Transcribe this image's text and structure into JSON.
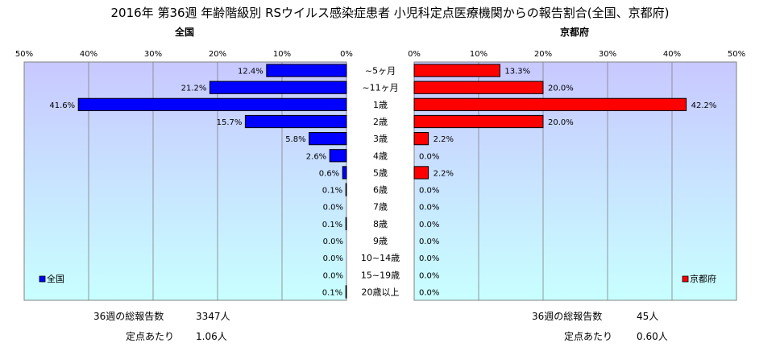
{
  "title": "2016年 第36週 年齢階級別 RSウイルス感染症患者 小児科定点医療機関からの報告割合(全国、京都府)",
  "chart_data": {
    "type": "bar",
    "orientation": "horizontal",
    "categories": [
      "~5ヶ月",
      "~11ヶ月",
      "1歳",
      "2歳",
      "3歳",
      "4歳",
      "5歳",
      "6歳",
      "7歳",
      "8歳",
      "9歳",
      "10~14歳",
      "15~19歳",
      "20歳以上"
    ],
    "series": [
      {
        "name": "全国",
        "panel": "left",
        "color": "#0000ff",
        "values": [
          12.4,
          21.2,
          41.6,
          15.7,
          5.8,
          2.6,
          0.6,
          0.1,
          0.0,
          0.1,
          0.0,
          0.0,
          0.0,
          0.1
        ],
        "labels": [
          "12.4%",
          "21.2%",
          "41.6%",
          "15.7%",
          "5.8%",
          "2.6%",
          "0.6%",
          "0.1%",
          "0.0%",
          "0.1%",
          "0.0%",
          "0.0%",
          "0.0%",
          "0.1%"
        ]
      },
      {
        "name": "京都府",
        "panel": "right",
        "color": "#ff0000",
        "values": [
          13.3,
          20.0,
          42.2,
          20.0,
          2.2,
          0.0,
          2.2,
          0.0,
          0.0,
          0.0,
          0.0,
          0.0,
          0.0,
          0.0
        ],
        "labels": [
          "13.3%",
          "20.0%",
          "42.2%",
          "20.0%",
          "2.2%",
          "0.0%",
          "2.2%",
          "0.0%",
          "0.0%",
          "0.0%",
          "0.0%",
          "0.0%",
          "0.0%",
          "0.0%"
        ]
      }
    ],
    "xlim": [
      0,
      50
    ],
    "ticks": [
      "0%",
      "10%",
      "20%",
      "30%",
      "40%",
      "50%"
    ],
    "ticks_reversed_left": [
      "50%",
      "40%",
      "30%",
      "20%",
      "10%",
      "0%"
    ],
    "panel_titles": {
      "left": "全国",
      "right": "京都府"
    },
    "legend": {
      "left": "全国",
      "right": "京都府",
      "placement": "bottom"
    },
    "plot_bg_top": "#c8c8ff",
    "plot_bg_bottom": "#c8ffff",
    "grid": true
  },
  "footer": {
    "national": {
      "total_label": "36週の総報告数",
      "total_value": "3347人",
      "per_label": "定点あたり",
      "per_value": "1.06人"
    },
    "kyoto": {
      "total_label": "36週の総報告数",
      "total_value": "45人",
      "per_label": "定点あたり",
      "per_value": "0.60人"
    }
  }
}
